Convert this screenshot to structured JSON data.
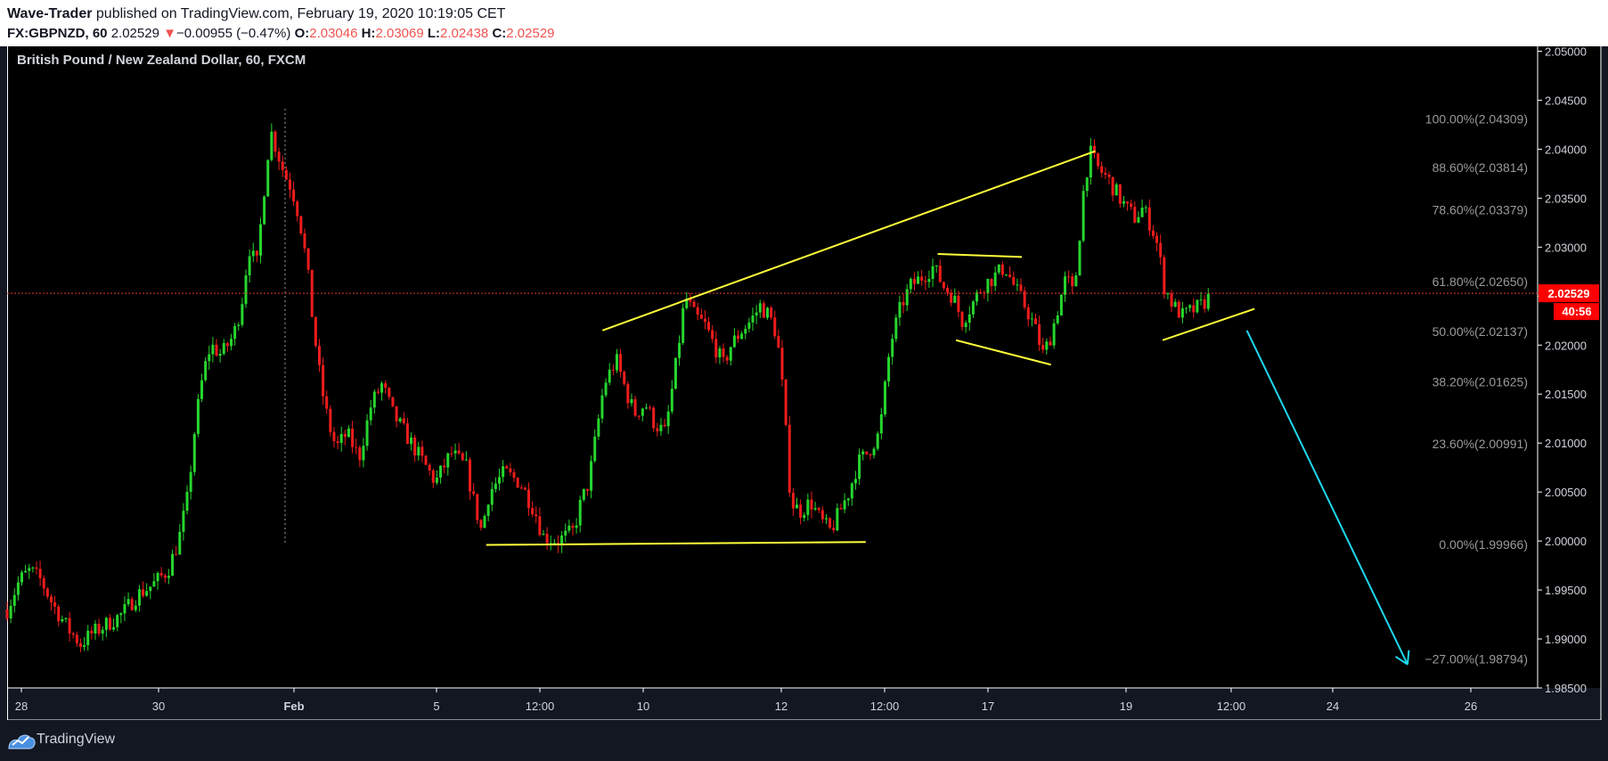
{
  "header": {
    "author": "Wave-Trader",
    "published_text": "published on TradingView.com, February 19, 2020 10:19:05 CET",
    "symbol": "FX:GBPNZD, 60",
    "last": "2.02529",
    "arrow": "▼",
    "change": "−0.00955 (−0.47%)",
    "o_label": "O:",
    "o_value": "2.03046",
    "h_label": "H:",
    "h_value": "2.03069",
    "l_label": "L:",
    "l_value": "2.02438",
    "c_label": "C:",
    "c_value": "2.02529"
  },
  "footer": {
    "brand": "TradingView"
  },
  "colors": {
    "background": "#000000",
    "up": "#26d62e",
    "down": "#ef1c1c",
    "trendline": "#ffff3a",
    "projection": "#1ed8ef",
    "price_line": "#e53935",
    "fib_text": "#9a9a9a",
    "axis_text": "#d1d4dc",
    "price_label_bg": "#ff0000"
  },
  "chart_data": {
    "type": "candlestick",
    "title": "British Pound / New Zealand Dollar, 60, FXCM",
    "ylim": [
      1.985,
      2.0505
    ],
    "y_ticks": [
      "2.05000",
      "2.04500",
      "2.04000",
      "2.03500",
      "2.03000",
      "2.02500",
      "2.02000",
      "2.01500",
      "2.01000",
      "2.00500",
      "2.00000",
      "1.99500",
      "1.99000",
      "1.98500"
    ],
    "x_ticks": [
      {
        "label": "28",
        "bold": false
      },
      {
        "label": "30",
        "bold": false
      },
      {
        "label": "Feb",
        "bold": true
      },
      {
        "label": "5",
        "bold": false
      },
      {
        "label": "12:00",
        "bold": false
      },
      {
        "label": "10",
        "bold": false
      },
      {
        "label": "12",
        "bold": false
      },
      {
        "label": "12:00",
        "bold": false
      },
      {
        "label": "17",
        "bold": false
      },
      {
        "label": "19",
        "bold": false
      },
      {
        "label": "12:00",
        "bold": false
      },
      {
        "label": "24",
        "bold": false
      },
      {
        "label": "26",
        "bold": false
      }
    ],
    "current_price": {
      "value": 2.02529,
      "label": "2.02529",
      "countdown": "40:56"
    },
    "fib_levels": [
      {
        "label": "100.00%(2.04309)",
        "value": 2.04309
      },
      {
        "label": "88.60%(2.03814)",
        "value": 2.03814
      },
      {
        "label": "78.60%(2.03379)",
        "value": 2.03379
      },
      {
        "label": "61.80%(2.02650)",
        "value": 2.0265
      },
      {
        "label": "50.00%(2.02137)",
        "value": 2.02137
      },
      {
        "label": "38.20%(2.01625)",
        "value": 2.01625
      },
      {
        "label": "23.60%(2.00991)",
        "value": 2.00991
      },
      {
        "label": "0.00%(1.99966)",
        "value": 1.99966
      },
      {
        "label": "−27.00%(1.98794)",
        "value": 1.98794
      }
    ],
    "price_path": [
      [
        0,
        1.993
      ],
      [
        0.008,
        1.996
      ],
      [
        0.015,
        1.997
      ],
      [
        0.022,
        1.996
      ],
      [
        0.03,
        1.9935
      ],
      [
        0.04,
        1.991
      ],
      [
        0.048,
        1.9895
      ],
      [
        0.055,
        1.9905
      ],
      [
        0.065,
        1.9915
      ],
      [
        0.075,
        1.9925
      ],
      [
        0.085,
        1.9945
      ],
      [
        0.095,
        1.9955
      ],
      [
        0.105,
        1.997
      ],
      [
        0.112,
        2.0
      ],
      [
        0.118,
        2.0045
      ],
      [
        0.123,
        2.012
      ],
      [
        0.128,
        2.017
      ],
      [
        0.133,
        2.02
      ],
      [
        0.14,
        2.019
      ],
      [
        0.148,
        2.021
      ],
      [
        0.153,
        2.024
      ],
      [
        0.158,
        2.03
      ],
      [
        0.163,
        2.028
      ],
      [
        0.168,
        2.036
      ],
      [
        0.172,
        2.042
      ],
      [
        0.176,
        2.04
      ],
      [
        0.181,
        2.0375
      ],
      [
        0.186,
        2.036
      ],
      [
        0.191,
        2.033
      ],
      [
        0.196,
        2.028
      ],
      [
        0.2,
        2.022
      ],
      [
        0.205,
        2.016
      ],
      [
        0.21,
        2.012
      ],
      [
        0.215,
        2.0095
      ],
      [
        0.222,
        2.011
      ],
      [
        0.23,
        2.0085
      ],
      [
        0.238,
        2.014
      ],
      [
        0.245,
        2.016
      ],
      [
        0.252,
        2.013
      ],
      [
        0.26,
        2.011
      ],
      [
        0.27,
        2.0085
      ],
      [
        0.28,
        2.006
      ],
      [
        0.29,
        2.009
      ],
      [
        0.3,
        2.0075
      ],
      [
        0.305,
        2.004
      ],
      [
        0.31,
        2.001
      ],
      [
        0.315,
        2.005
      ],
      [
        0.325,
        2.007
      ],
      [
        0.335,
        2.006
      ],
      [
        0.345,
        2.003
      ],
      [
        0.35,
        2.0005
      ],
      [
        0.36,
        2.0
      ],
      [
        0.37,
        2.001
      ],
      [
        0.375,
        2.004
      ],
      [
        0.38,
        2.006
      ],
      [
        0.385,
        2.011
      ],
      [
        0.39,
        2.016
      ],
      [
        0.398,
        2.0185
      ],
      [
        0.405,
        2.015
      ],
      [
        0.41,
        2.013
      ],
      [
        0.417,
        2.014
      ],
      [
        0.423,
        2.012
      ],
      [
        0.43,
        2.011
      ],
      [
        0.437,
        2.018
      ],
      [
        0.443,
        2.025
      ],
      [
        0.449,
        2.023
      ],
      [
        0.456,
        2.022
      ],
      [
        0.462,
        2.02
      ],
      [
        0.468,
        2.018
      ],
      [
        0.473,
        2.02
      ],
      [
        0.48,
        2.0215
      ],
      [
        0.486,
        2.0225
      ],
      [
        0.492,
        2.024
      ],
      [
        0.498,
        2.023
      ],
      [
        0.503,
        2.021
      ],
      [
        0.507,
        2.015
      ],
      [
        0.512,
        2.004
      ],
      [
        0.518,
        2.003
      ],
      [
        0.525,
        2.004
      ],
      [
        0.532,
        2.002
      ],
      [
        0.538,
        2.001
      ],
      [
        0.544,
        2.003
      ],
      [
        0.55,
        2.005
      ],
      [
        0.556,
        2.008
      ],
      [
        0.562,
        2.009
      ],
      [
        0.57,
        2.011
      ],
      [
        0.577,
        2.02
      ],
      [
        0.584,
        2.024
      ],
      [
        0.59,
        2.026
      ],
      [
        0.598,
        2.027
      ],
      [
        0.605,
        2.028
      ],
      [
        0.612,
        2.026
      ],
      [
        0.618,
        2.025
      ],
      [
        0.624,
        2.0225
      ],
      [
        0.63,
        2.024
      ],
      [
        0.637,
        2.026
      ],
      [
        0.645,
        2.027
      ],
      [
        0.652,
        2.028
      ],
      [
        0.658,
        2.026
      ],
      [
        0.665,
        2.024
      ],
      [
        0.671,
        2.022
      ],
      [
        0.677,
        2.019
      ],
      [
        0.682,
        2.021
      ],
      [
        0.687,
        2.024
      ],
      [
        0.692,
        2.027
      ],
      [
        0.697,
        2.025
      ],
      [
        0.7,
        2.03
      ],
      [
        0.704,
        2.037
      ],
      [
        0.708,
        2.0395
      ],
      [
        0.713,
        2.038
      ],
      [
        0.719,
        2.037
      ],
      [
        0.725,
        2.0355
      ],
      [
        0.731,
        2.034
      ],
      [
        0.737,
        2.033
      ],
      [
        0.742,
        2.034
      ],
      [
        0.748,
        2.032
      ],
      [
        0.752,
        2.03
      ],
      [
        0.756,
        2.026
      ],
      [
        0.762,
        2.024
      ],
      [
        0.768,
        2.023
      ],
      [
        0.774,
        2.0235
      ],
      [
        0.78,
        2.024
      ],
      [
        0.786,
        2.025
      ]
    ],
    "trendlines": [
      {
        "from": [
          0.389,
          2.0215
        ],
        "to": [
          0.711,
          2.0398
        ],
        "color": "yellow"
      },
      {
        "from": [
          0.313,
          1.9996
        ],
        "to": [
          0.561,
          1.9999
        ],
        "color": "yellow"
      },
      {
        "from": [
          0.608,
          2.0293
        ],
        "to": [
          0.663,
          2.029
        ],
        "color": "yellow"
      },
      {
        "from": [
          0.62,
          2.0205
        ],
        "to": [
          0.682,
          2.018
        ],
        "color": "yellow"
      },
      {
        "from": [
          0.755,
          2.0205
        ],
        "to": [
          0.815,
          2.0237
        ],
        "color": "yellow"
      },
      {
        "from": [
          0.81,
          2.0215
        ],
        "to": [
          0.915,
          1.9874
        ],
        "color": "cyan",
        "arrow": true
      }
    ]
  }
}
